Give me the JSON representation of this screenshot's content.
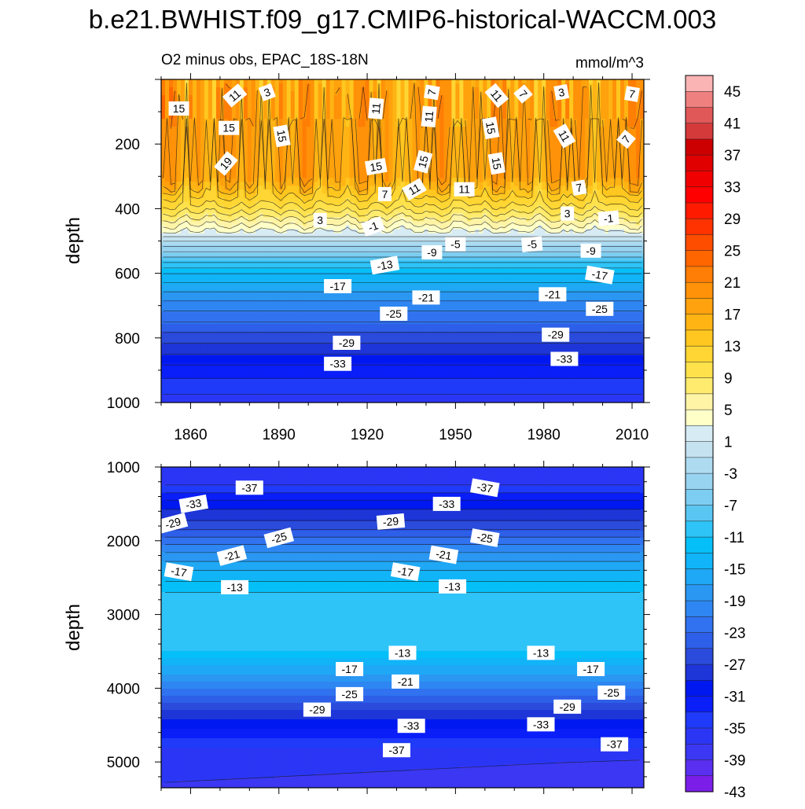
{
  "title": "b.e21.BWHIST.f09_g17.CMIP6-historical-WACCM.003",
  "chart_data": {
    "type": "heatmap",
    "subtitle_left": "O2 minus obs, EPAC_18S-18N",
    "subtitle_right": "mmol/m^3",
    "colorbar": {
      "levels": [
        -45,
        -43,
        -41,
        -39,
        -37,
        -35,
        -33,
        -31,
        -29,
        -27,
        -25,
        -23,
        -21,
        -19,
        -17,
        -15,
        -13,
        -11,
        -9,
        -7,
        -5,
        -3,
        -1,
        1,
        3,
        5,
        7,
        9,
        11,
        13,
        15,
        17,
        19,
        21,
        23,
        25,
        27,
        29,
        31,
        33,
        35,
        37,
        39,
        41,
        43,
        45
      ],
      "tick_labels": [
        "45",
        "41",
        "37",
        "33",
        "29",
        "25",
        "21",
        "17",
        "13",
        "9",
        "5",
        "1",
        "-3",
        "-7",
        "-11",
        "-15",
        "-19",
        "-23",
        "-27",
        "-31",
        "-35",
        "-39",
        "-43"
      ],
      "colors": [
        "#7b1fe8",
        "#5a2ff0",
        "#3b37f2",
        "#2b36f5",
        "#1f3af8",
        "#0a1ef8",
        "#0018f0",
        "#1e35d8",
        "#2a4bdb",
        "#2d5fe8",
        "#3072ef",
        "#2e86f2",
        "#2a97f2",
        "#1fa8f5",
        "#10b4f7",
        "#05bff8",
        "#2ec4f7",
        "#59c6f2",
        "#7dcdf2",
        "#98d3f0",
        "#aedbf0",
        "#c4e2f0",
        "#d6ebf4",
        "#ffffc8",
        "#fff4a6",
        "#ffeb6e",
        "#ffe14c",
        "#ffd633",
        "#ffc71f",
        "#ffb414",
        "#ffa20d",
        "#ff9208",
        "#ff7e05",
        "#ff6600",
        "#ff4d00",
        "#ff3300",
        "#ff1a00",
        "#ff0000",
        "#f00000",
        "#e00000",
        "#cc0000",
        "#d43a3a",
        "#e05858",
        "#ef8080",
        "#fbb4b4"
      ]
    },
    "panels": [
      {
        "name": "upper",
        "depth_range": [
          0,
          1000
        ],
        "x_range": [
          1850,
          2014
        ],
        "x_ticks": [
          1860,
          1890,
          1920,
          1950,
          1980,
          2010
        ],
        "y_ticks": [
          200,
          400,
          600,
          800,
          1000
        ],
        "ylabel": "depth",
        "profile": [
          [
            0,
            15
          ],
          [
            50,
            16
          ],
          [
            300,
            16
          ],
          [
            400,
            8
          ],
          [
            450,
            3
          ],
          [
            480,
            0
          ],
          [
            500,
            -3
          ],
          [
            550,
            -9
          ],
          [
            600,
            -15
          ],
          [
            700,
            -22
          ],
          [
            800,
            -28
          ],
          [
            900,
            -34
          ],
          [
            1000,
            -38
          ]
        ],
        "contour_labels": [
          {
            "text": "15",
            "year": 1856,
            "depth": 90,
            "angle": 0
          },
          {
            "text": "11",
            "year": 1875,
            "depth": 50,
            "angle": -40
          },
          {
            "text": "3",
            "year": 1886,
            "depth": 40,
            "angle": -20
          },
          {
            "text": "15",
            "year": 1873,
            "depth": 150,
            "angle": 0
          },
          {
            "text": "15",
            "year": 1891,
            "depth": 175,
            "angle": 80
          },
          {
            "text": "19",
            "year": 1872,
            "depth": 260,
            "angle": -50
          },
          {
            "text": "11",
            "year": 1923,
            "depth": 90,
            "angle": -85
          },
          {
            "text": "7",
            "year": 1942,
            "depth": 40,
            "angle": -80
          },
          {
            "text": "11",
            "year": 1941,
            "depth": 115,
            "angle": -85
          },
          {
            "text": "11",
            "year": 1964,
            "depth": 50,
            "angle": 50
          },
          {
            "text": "7",
            "year": 1973,
            "depth": 45,
            "angle": 50
          },
          {
            "text": "3",
            "year": 1986,
            "depth": 40,
            "angle": -10
          },
          {
            "text": "7",
            "year": 2010,
            "depth": 45,
            "angle": 10
          },
          {
            "text": "15",
            "year": 1962,
            "depth": 150,
            "angle": 80
          },
          {
            "text": "11",
            "year": 1987,
            "depth": 175,
            "angle": 60
          },
          {
            "text": "7",
            "year": 2008,
            "depth": 185,
            "angle": -50
          },
          {
            "text": "15",
            "year": 1923,
            "depth": 270,
            "angle": -10
          },
          {
            "text": "15",
            "year": 1939,
            "depth": 255,
            "angle": -75
          },
          {
            "text": "15",
            "year": 1964,
            "depth": 260,
            "angle": 80
          },
          {
            "text": "7",
            "year": 1926,
            "depth": 355,
            "angle": 0
          },
          {
            "text": "11",
            "year": 1936,
            "depth": 340,
            "angle": -30
          },
          {
            "text": "11",
            "year": 1953,
            "depth": 340,
            "angle": 0
          },
          {
            "text": "7",
            "year": 1992,
            "depth": 335,
            "angle": -10
          },
          {
            "text": "3",
            "year": 1904,
            "depth": 435,
            "angle": 0
          },
          {
            "text": "-1",
            "year": 1922,
            "depth": 455,
            "angle": -20
          },
          {
            "text": "3",
            "year": 1988,
            "depth": 415,
            "angle": 0
          },
          {
            "text": "-1",
            "year": 2002,
            "depth": 430,
            "angle": -5
          },
          {
            "text": "-5",
            "year": 1950,
            "depth": 510,
            "angle": 0
          },
          {
            "text": "-5",
            "year": 1976,
            "depth": 510,
            "angle": -5
          },
          {
            "text": "-9",
            "year": 1942,
            "depth": 535,
            "angle": 0
          },
          {
            "text": "-9",
            "year": 1996,
            "depth": 530,
            "angle": 0
          },
          {
            "text": "-13",
            "year": 1926,
            "depth": 575,
            "angle": -10
          },
          {
            "text": "-17",
            "year": 1910,
            "depth": 640,
            "angle": 0
          },
          {
            "text": "-17",
            "year": 1999,
            "depth": 605,
            "angle": 10
          },
          {
            "text": "-21",
            "year": 1940,
            "depth": 675,
            "angle": 0
          },
          {
            "text": "-21",
            "year": 1983,
            "depth": 665,
            "angle": 0
          },
          {
            "text": "-25",
            "year": 1929,
            "depth": 725,
            "angle": 0
          },
          {
            "text": "-25",
            "year": 1999,
            "depth": 710,
            "angle": 0
          },
          {
            "text": "-29",
            "year": 1913,
            "depth": 815,
            "angle": 0
          },
          {
            "text": "-29",
            "year": 1984,
            "depth": 790,
            "angle": 0
          },
          {
            "text": "-33",
            "year": 1910,
            "depth": 880,
            "angle": 0
          },
          {
            "text": "-33",
            "year": 1987,
            "depth": 865,
            "angle": 0
          }
        ]
      },
      {
        "name": "lower",
        "depth_range": [
          1000,
          5350
        ],
        "x_range": [
          1850,
          2014
        ],
        "y_ticks": [
          1000,
          2000,
          3000,
          4000,
          5000
        ],
        "ylabel": "depth",
        "profile": [
          [
            1000,
            -38
          ],
          [
            1250,
            -37
          ],
          [
            1500,
            -32
          ],
          [
            1800,
            -28
          ],
          [
            2100,
            -22
          ],
          [
            2400,
            -17
          ],
          [
            2700,
            -13
          ],
          [
            2850,
            -11.5
          ],
          [
            3350,
            -11.5
          ],
          [
            3500,
            -13
          ],
          [
            3700,
            -17
          ],
          [
            3900,
            -21
          ],
          [
            4100,
            -25
          ],
          [
            4300,
            -29
          ],
          [
            4550,
            -33
          ],
          [
            4800,
            -37
          ],
          [
            5000,
            -38.5
          ],
          [
            5350,
            -40
          ]
        ],
        "contour_labels": [
          {
            "text": "-37",
            "year": 1880,
            "depth": 1280,
            "angle": 0
          },
          {
            "text": "-37",
            "year": 1960,
            "depth": 1280,
            "angle": 10
          },
          {
            "text": "-33",
            "year": 1861,
            "depth": 1500,
            "angle": -10
          },
          {
            "text": "-33",
            "year": 1947,
            "depth": 1500,
            "angle": 0
          },
          {
            "text": "-29",
            "year": 1854,
            "depth": 1760,
            "angle": -15
          },
          {
            "text": "-29",
            "year": 1928,
            "depth": 1740,
            "angle": -5
          },
          {
            "text": "-25",
            "year": 1890,
            "depth": 1960,
            "angle": -15
          },
          {
            "text": "-25",
            "year": 1960,
            "depth": 1960,
            "angle": 10
          },
          {
            "text": "-21",
            "year": 1874,
            "depth": 2200,
            "angle": -15
          },
          {
            "text": "-21",
            "year": 1946,
            "depth": 2190,
            "angle": 10
          },
          {
            "text": "-17",
            "year": 1856,
            "depth": 2420,
            "angle": 10
          },
          {
            "text": "-17",
            "year": 1933,
            "depth": 2420,
            "angle": 10
          },
          {
            "text": "-13",
            "year": 1875,
            "depth": 2630,
            "angle": 0
          },
          {
            "text": "-13",
            "year": 1949,
            "depth": 2620,
            "angle": 0
          },
          {
            "text": "-13",
            "year": 1932,
            "depth": 3520,
            "angle": 0
          },
          {
            "text": "-13",
            "year": 1979,
            "depth": 3520,
            "angle": 0
          },
          {
            "text": "-17",
            "year": 1914,
            "depth": 3740,
            "angle": 0
          },
          {
            "text": "-17",
            "year": 1996,
            "depth": 3740,
            "angle": 0
          },
          {
            "text": "-21",
            "year": 1933,
            "depth": 3910,
            "angle": 0
          },
          {
            "text": "-25",
            "year": 1914,
            "depth": 4080,
            "angle": 0
          },
          {
            "text": "-25",
            "year": 2003,
            "depth": 4060,
            "angle": 0
          },
          {
            "text": "-29",
            "year": 1903,
            "depth": 4290,
            "angle": 0
          },
          {
            "text": "-29",
            "year": 1988,
            "depth": 4250,
            "angle": 0
          },
          {
            "text": "-33",
            "year": 1935,
            "depth": 4510,
            "angle": 0
          },
          {
            "text": "-33",
            "year": 1979,
            "depth": 4490,
            "angle": 0
          },
          {
            "text": "-37",
            "year": 1930,
            "depth": 4840,
            "angle": 0
          },
          {
            "text": "-37",
            "year": 2004,
            "depth": 4760,
            "angle": 0
          }
        ]
      }
    ]
  }
}
